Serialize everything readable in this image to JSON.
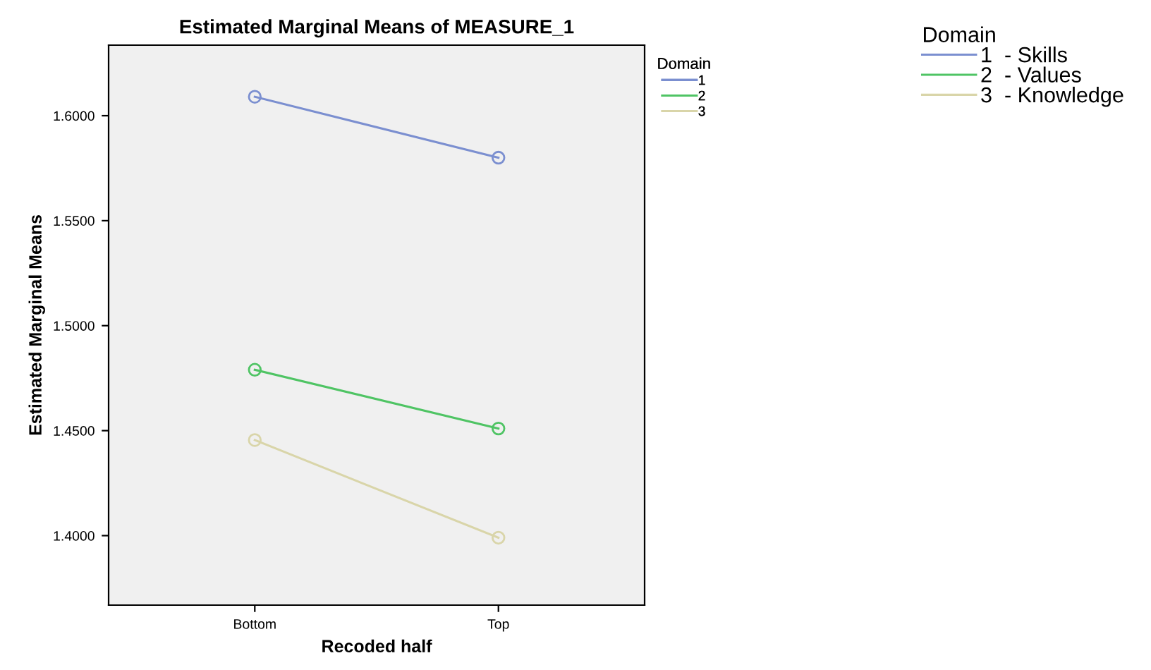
{
  "chart_data": {
    "type": "line",
    "title": "Estimated Marginal Means of MEASURE_1",
    "xlabel": "Recoded half",
    "ylabel": "Estimated Marginal Means",
    "legend_title": "Domain",
    "categories": [
      "Bottom",
      "Top"
    ],
    "series": [
      {
        "name": "1",
        "color": "#7b8fd0",
        "values": [
          1.609,
          1.58
        ]
      },
      {
        "name": "2",
        "color": "#4fc464",
        "values": [
          1.479,
          1.451
        ]
      },
      {
        "name": "3",
        "color": "#d9d5a9",
        "values": [
          1.4455,
          1.399
        ]
      }
    ],
    "annotations": [
      "1  - Skills",
      "2  - Values",
      "3  - Knowledge"
    ],
    "ylim": [
      1.3669,
      1.6336
    ],
    "yticks": [
      {
        "value": 1.4,
        "label": "1.4000"
      },
      {
        "value": 1.45,
        "label": "1.4500"
      },
      {
        "value": 1.5,
        "label": "1.5000"
      },
      {
        "value": 1.55,
        "label": "1.5500"
      },
      {
        "value": 1.6,
        "label": "1.6000"
      }
    ],
    "grid": false,
    "legend": "right",
    "marker": "circle",
    "line_style": "solid"
  }
}
